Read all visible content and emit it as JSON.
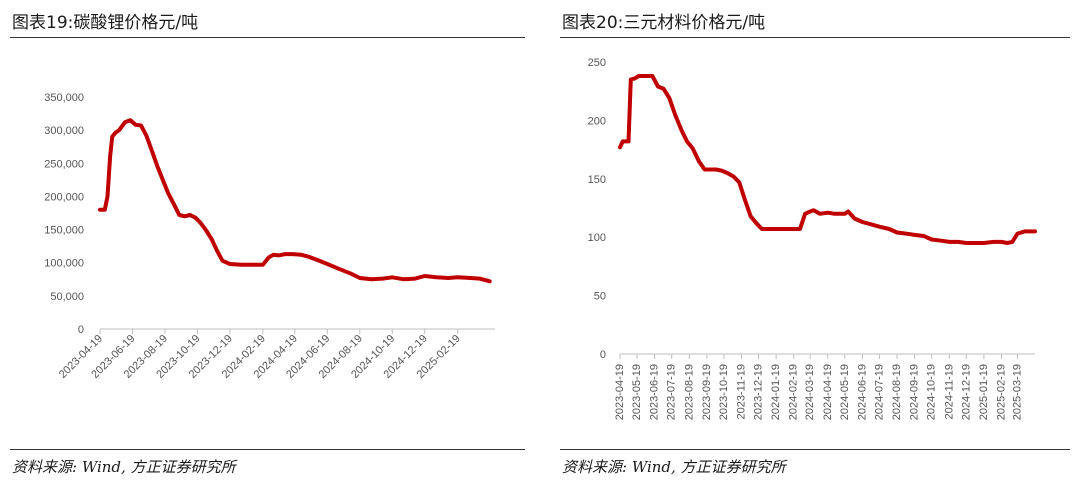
{
  "left": {
    "title": "图表19:碳酸锂价格元/吨",
    "source": "资料来源: Wind, 方正证券研究所"
  },
  "right": {
    "title": "图表20:三元材料价格元/吨",
    "source": "资料来源: Wind, 方正证券研究所"
  },
  "colors": {
    "line": "#c00000",
    "axis": "#bfbfbf",
    "text": "#555555"
  },
  "chart_data": [
    {
      "type": "line",
      "title": "图表19:碳酸锂价格元/吨",
      "ylim": [
        0,
        350000
      ],
      "yticks": [
        "0",
        "50,000",
        "100,000",
        "150,000",
        "200,000",
        "250,000",
        "300,000",
        "350,000"
      ],
      "ytick_values": [
        0,
        50000,
        100000,
        150000,
        200000,
        250000,
        300000,
        350000
      ],
      "xticks": [
        "2023-04-19",
        "2023-06-19",
        "2023-08-19",
        "2023-10-19",
        "2023-12-19",
        "2024-02-19",
        "2024-04-19",
        "2024-06-19",
        "2024-08-19",
        "2024-10-19",
        "2024-12-19",
        "2025-02-19"
      ],
      "x_range": [
        "2023-04-19",
        "2025-04-30"
      ],
      "series": [
        {
          "x": [
            "2023-04-19",
            "2023-04-28",
            "2023-05-03",
            "2023-05-08",
            "2023-05-12",
            "2023-05-18",
            "2023-05-25",
            "2023-06-05",
            "2023-06-15",
            "2023-06-25",
            "2023-07-05",
            "2023-07-15",
            "2023-07-25",
            "2023-08-05",
            "2023-08-15",
            "2023-08-25",
            "2023-09-05",
            "2023-09-15",
            "2023-09-25",
            "2023-10-05",
            "2023-10-15",
            "2023-10-25",
            "2023-11-05",
            "2023-11-15",
            "2023-11-25",
            "2023-12-05",
            "2023-12-19",
            "2024-01-10",
            "2024-02-01",
            "2024-02-19",
            "2024-03-01",
            "2024-03-10",
            "2024-03-20",
            "2024-04-01",
            "2024-04-15",
            "2024-05-01",
            "2024-05-15",
            "2024-06-01",
            "2024-06-19",
            "2024-07-10",
            "2024-08-01",
            "2024-08-19",
            "2024-09-10",
            "2024-10-01",
            "2024-10-19",
            "2024-11-10",
            "2024-12-01",
            "2024-12-19",
            "2025-01-10",
            "2025-02-01",
            "2025-02-19",
            "2025-03-15",
            "2025-04-01",
            "2025-04-20"
          ],
          "values": [
            180000,
            180000,
            200000,
            260000,
            290000,
            296000,
            300000,
            312000,
            315000,
            308000,
            307000,
            292000,
            270000,
            245000,
            225000,
            205000,
            188000,
            172000,
            170000,
            172000,
            168000,
            160000,
            148000,
            135000,
            118000,
            103000,
            98000,
            97000,
            97000,
            97000,
            108000,
            112000,
            111000,
            113000,
            113000,
            112000,
            109000,
            104000,
            98000,
            91000,
            84000,
            77000,
            75000,
            76000,
            78000,
            75000,
            76000,
            80000,
            78000,
            77000,
            78000,
            77000,
            76000,
            72000
          ]
        }
      ]
    },
    {
      "type": "line",
      "title": "图表20:三元材料价格元/吨",
      "ylim": [
        0,
        250
      ],
      "yticks": [
        "0",
        "50",
        "100",
        "150",
        "200",
        "250"
      ],
      "ytick_values": [
        0,
        50,
        100,
        150,
        200,
        250
      ],
      "xticks": [
        "2023-04-19",
        "2023-05-19",
        "2023-06-19",
        "2023-07-19",
        "2023-08-19",
        "2023-09-19",
        "2023-10-19",
        "2023-11-19",
        "2023-12-19",
        "2024-01-19",
        "2024-02-19",
        "2024-03-19",
        "2024-04-19",
        "2024-05-19",
        "2024-06-19",
        "2024-07-19",
        "2024-08-19",
        "2024-09-19",
        "2024-10-19",
        "2024-11-19",
        "2024-12-19",
        "2025-01-19",
        "2025-02-19",
        "2025-03-19"
      ],
      "x_range": [
        "2023-04-19",
        "2025-04-19"
      ],
      "series": [
        {
          "x": [
            "2023-04-19",
            "2023-04-24",
            "2023-05-04",
            "2023-05-08",
            "2023-05-15",
            "2023-05-22",
            "2023-06-01",
            "2023-06-15",
            "2023-06-25",
            "2023-07-05",
            "2023-07-15",
            "2023-07-25",
            "2023-08-05",
            "2023-08-15",
            "2023-08-25",
            "2023-09-05",
            "2023-09-15",
            "2023-09-25",
            "2023-10-05",
            "2023-10-15",
            "2023-10-25",
            "2023-11-05",
            "2023-11-15",
            "2023-11-25",
            "2023-12-05",
            "2023-12-15",
            "2023-12-25",
            "2024-01-19",
            "2024-02-19",
            "2024-03-01",
            "2024-03-10",
            "2024-03-19",
            "2024-03-25",
            "2024-04-05",
            "2024-04-19",
            "2024-05-01",
            "2024-05-19",
            "2024-05-25",
            "2024-06-05",
            "2024-06-19",
            "2024-07-05",
            "2024-07-19",
            "2024-08-05",
            "2024-08-19",
            "2024-09-05",
            "2024-09-19",
            "2024-10-05",
            "2024-10-19",
            "2024-11-05",
            "2024-11-19",
            "2024-12-05",
            "2024-12-19",
            "2025-01-05",
            "2025-01-19",
            "2025-02-05",
            "2025-02-19",
            "2025-03-01",
            "2025-03-10",
            "2025-03-19",
            "2025-04-01",
            "2025-04-19"
          ],
          "values": [
            177,
            182,
            182,
            235,
            236,
            238,
            238,
            238,
            229,
            227,
            219,
            205,
            192,
            182,
            176,
            165,
            158,
            158,
            158,
            157,
            155,
            152,
            147,
            132,
            118,
            112,
            107,
            107,
            107,
            107,
            120,
            122,
            123,
            120,
            121,
            120,
            120,
            122,
            116,
            113,
            111,
            109,
            107,
            104,
            103,
            102,
            101,
            98,
            97,
            96,
            96,
            95,
            95,
            95,
            96,
            96,
            95,
            96,
            103,
            105,
            105
          ]
        }
      ]
    }
  ]
}
